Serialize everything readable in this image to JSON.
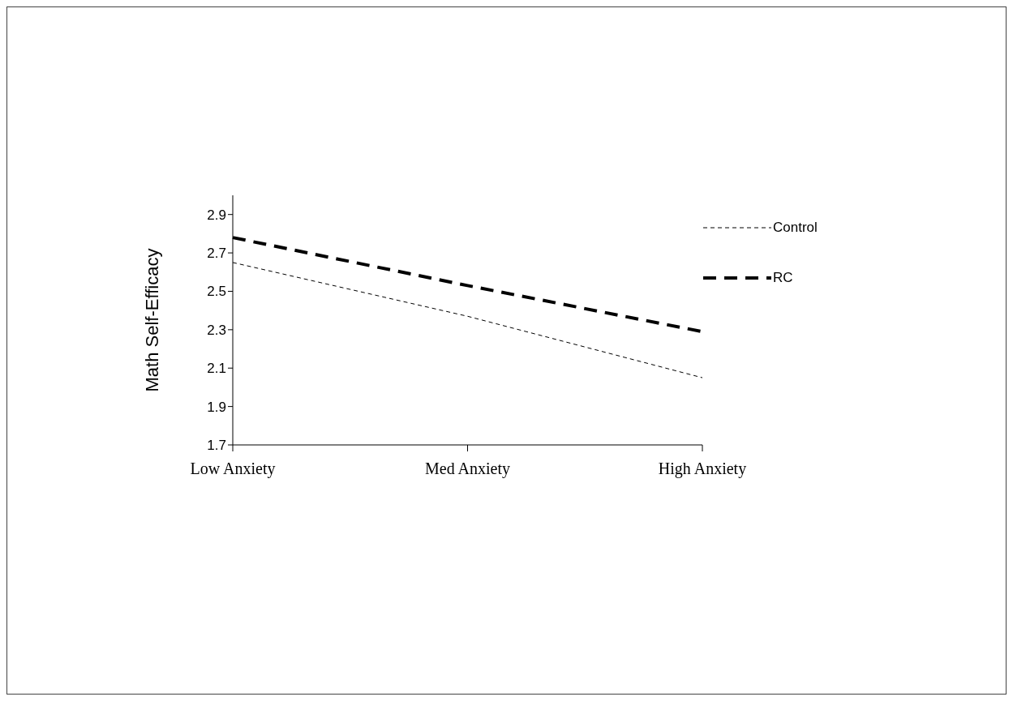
{
  "chart_data": {
    "type": "line",
    "ylabel": "Math Self-Efficacy",
    "categories": [
      "Low Anxiety",
      "Med Anxiety",
      "High Anxiety"
    ],
    "series": [
      {
        "name": "Control",
        "color": "#000000",
        "values": [
          2.65,
          2.37,
          2.05
        ]
      },
      {
        "name": "RC",
        "color": "#000000",
        "values": [
          2.78,
          2.53,
          2.29
        ]
      }
    ],
    "ylim": [
      1.7,
      3.0
    ],
    "yticks": [
      1.7,
      1.9,
      2.1,
      2.3,
      2.5,
      2.7,
      2.9
    ],
    "grid": false,
    "legend": "top right",
    "marker": "none",
    "line_style": "dashed"
  }
}
